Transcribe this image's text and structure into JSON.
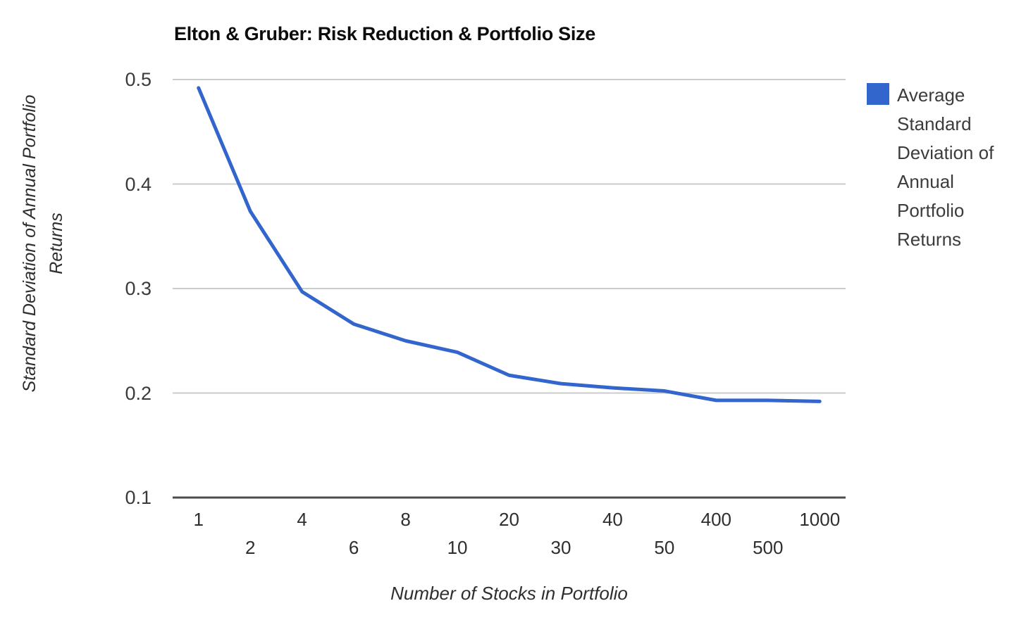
{
  "chart": {
    "title": "Elton & Gruber: Risk Reduction & Portfolio Size",
    "xlabel": "Number of Stocks in Portfolio",
    "ylabel_lines": [
      "Standard Deviation of Annual Portfolio",
      "Returns"
    ]
  },
  "chart_data": {
    "type": "line",
    "title": "Elton & Gruber: Risk Reduction & Portfolio Size",
    "categories": [
      1,
      2,
      4,
      6,
      8,
      10,
      20,
      30,
      40,
      50,
      400,
      500,
      1000
    ],
    "series": [
      {
        "name": "Average Standard Deviation of Annual Portfolio Returns",
        "values": [
          0.492,
          0.374,
          0.297,
          0.266,
          0.25,
          0.239,
          0.217,
          0.209,
          0.205,
          0.202,
          0.193,
          0.193,
          0.192
        ],
        "color": "#3366cc"
      }
    ],
    "xlabel": "Number of Stocks in Portfolio",
    "ylabel": "Standard Deviation of Annual Portfolio Returns",
    "x_axis_type": "category",
    "x_tick_labels_staggered": true,
    "y_ticks": [
      0.5,
      0.4,
      0.3,
      0.2,
      0.1
    ],
    "ylim": [
      0.1,
      0.5
    ],
    "grid": true,
    "legend_position": "right",
    "legend_lines": [
      "Average",
      "Standard",
      "Deviation of",
      "Annual",
      "Portfolio",
      "Returns"
    ],
    "colors": {
      "line": "#3366cc",
      "gridline": "#cccccc",
      "axis_line": "#4d4d4d",
      "tick_label": "#3a3a3a",
      "title": "#0c0c0c",
      "background": "#ffffff"
    }
  }
}
